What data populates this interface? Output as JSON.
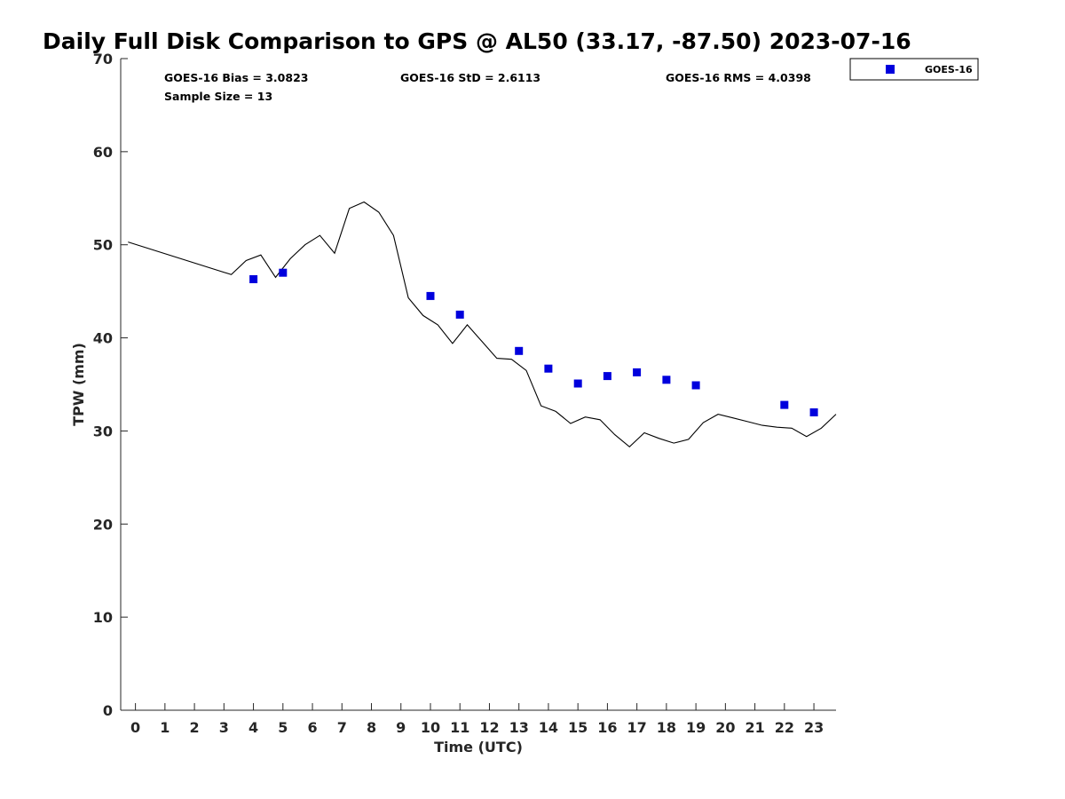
{
  "chart_data": {
    "type": "scatter",
    "title": "Daily Full Disk Comparison to GPS @ AL50 (33.17, -87.50) 2023-07-16",
    "xlabel": "Time (UTC)",
    "ylabel": "TPW (mm)",
    "xlim": [
      -0.5,
      23.75
    ],
    "ylim": [
      0,
      70
    ],
    "xticks": [
      0,
      1,
      2,
      3,
      4,
      5,
      6,
      7,
      8,
      9,
      10,
      11,
      12,
      13,
      14,
      15,
      16,
      17,
      18,
      19,
      20,
      21,
      22,
      23
    ],
    "yticks": [
      0,
      10,
      20,
      30,
      40,
      50,
      60,
      70
    ],
    "grid": false,
    "legend_placement": "top-right, outside plot",
    "stats": {
      "bias": "GOES-16 Bias = 3.0823",
      "std": "GOES-16 StD = 2.6113",
      "rms": "GOES-16 RMS = 4.0398",
      "sample": "Sample Size = 13"
    },
    "series": [
      {
        "kind": "line",
        "color": "#000000",
        "x": [
          -0.25,
          3.25,
          3.75,
          4.25,
          4.75,
          5.25,
          5.75,
          6.25,
          6.75,
          7.25,
          7.75,
          8.25,
          8.75,
          9.25,
          9.75,
          10.25,
          10.75,
          11.25,
          11.75,
          12.25,
          12.75,
          13.25,
          13.75,
          14.25,
          14.75,
          15.25,
          15.75,
          16.25,
          16.75,
          17.25,
          17.75,
          18.25,
          18.75,
          19.25,
          19.75,
          20.25,
          20.75,
          21.25,
          21.75,
          22.25,
          22.75,
          23.25,
          23.75
        ],
        "y": [
          50.3,
          46.8,
          48.3,
          48.9,
          46.5,
          48.5,
          50.0,
          51.0,
          49.1,
          53.9,
          54.6,
          53.5,
          51.0,
          44.3,
          42.4,
          41.4,
          39.4,
          41.4,
          39.6,
          37.8,
          37.7,
          36.5,
          32.7,
          32.1,
          30.8,
          31.5,
          31.2,
          29.6,
          28.3,
          29.8,
          29.2,
          28.7,
          29.1,
          30.9,
          31.8,
          31.4,
          31.0,
          30.6,
          30.4,
          30.3,
          29.4,
          30.3,
          31.8
        ]
      },
      {
        "name": "GOES-16",
        "kind": "scatter",
        "color": "#0000dd",
        "x": [
          4,
          5,
          10,
          11,
          13,
          14,
          15,
          16,
          17,
          18,
          19,
          22,
          23
        ],
        "y": [
          46.3,
          47.0,
          44.5,
          42.5,
          38.6,
          36.7,
          35.1,
          35.9,
          36.3,
          35.5,
          34.9,
          32.8,
          32.0
        ]
      }
    ]
  }
}
